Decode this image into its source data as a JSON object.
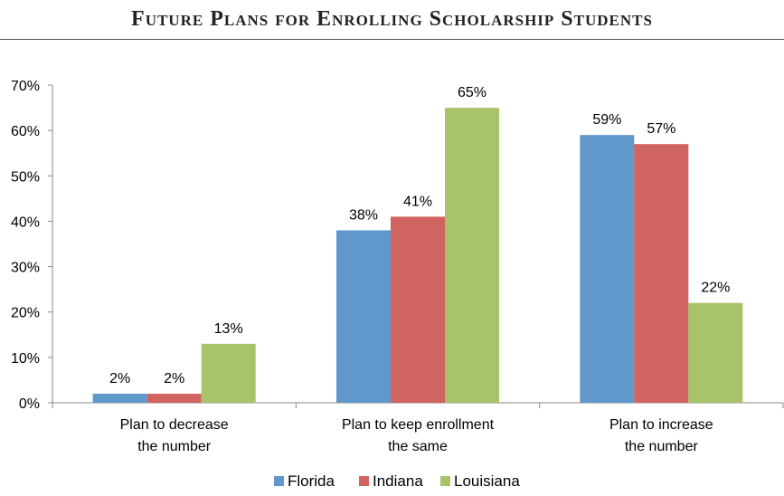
{
  "chart_data": {
    "type": "bar",
    "title": "Future Plans for Enrolling Scholarship Students",
    "categories": [
      [
        "Plan to decrease",
        "the number"
      ],
      [
        "Plan to keep enrollment",
        "the same"
      ],
      [
        "Plan to increase",
        "the number"
      ]
    ],
    "series": [
      {
        "name": "Florida",
        "color": "#6198CC",
        "values": [
          2,
          38,
          59
        ],
        "labels": [
          "2%",
          "38%",
          "59%"
        ]
      },
      {
        "name": "Indiana",
        "color": "#CF6460",
        "values": [
          2,
          41,
          57
        ],
        "labels": [
          "2%",
          "41%",
          "57%"
        ]
      },
      {
        "name": "Louisiana",
        "color": "#A8C46A",
        "values": [
          13,
          65,
          22
        ],
        "labels": [
          "13%",
          "65%",
          "22%"
        ]
      }
    ],
    "ylim": [
      0,
      70
    ],
    "yticks": [
      "0%",
      "10%",
      "20%",
      "30%",
      "40%",
      "50%",
      "60%",
      "70%"
    ],
    "xlabel": "",
    "ylabel": "",
    "legend": "bottom",
    "grid": false
  }
}
